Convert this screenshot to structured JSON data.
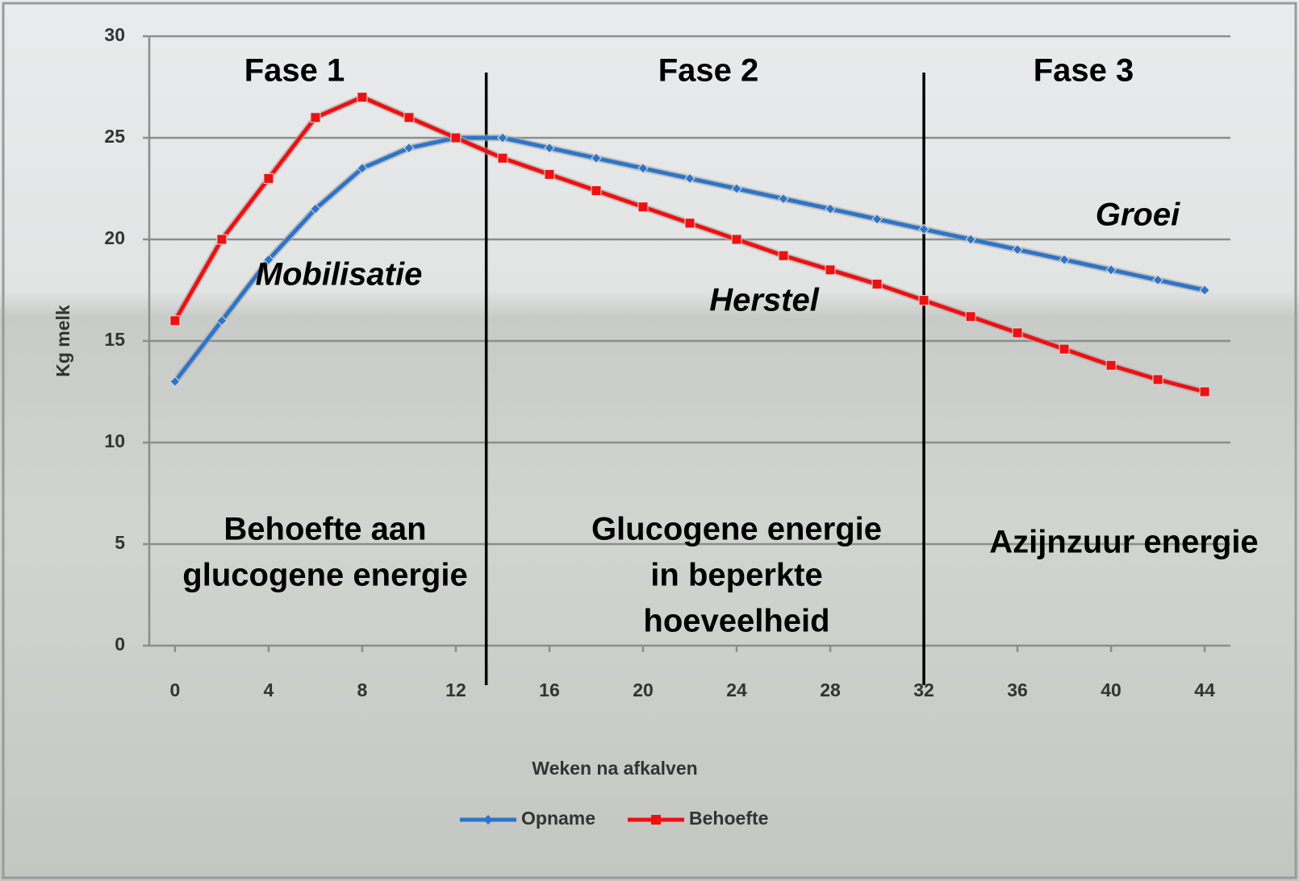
{
  "chart_data": {
    "type": "line",
    "xlabel": "Weken na afkalven",
    "ylabel": "Kg melk",
    "x": [
      0,
      2,
      4,
      6,
      8,
      10,
      12,
      14,
      16,
      18,
      20,
      22,
      24,
      26,
      28,
      30,
      32,
      34,
      36,
      38,
      40,
      42,
      44
    ],
    "series": [
      {
        "name": "Opname",
        "color": "#2e75c8",
        "marker": "diamond",
        "values": [
          13,
          16,
          19,
          21.5,
          23.5,
          24.5,
          25,
          25,
          24.5,
          24,
          23.5,
          23,
          22.5,
          22,
          21.5,
          21,
          20.5,
          20,
          19.5,
          19,
          18.5,
          18,
          17.5
        ]
      },
      {
        "name": "Behoefte",
        "color": "#ee1111",
        "marker": "square",
        "values": [
          16,
          20,
          23,
          26,
          27,
          26,
          25,
          24,
          23.2,
          22.4,
          21.6,
          20.8,
          20,
          19.2,
          18.5,
          17.8,
          17,
          16.2,
          15.4,
          14.6,
          13.8,
          13.1,
          12.5
        ]
      }
    ],
    "xlim": [
      -1.1,
      45.1
    ],
    "ylim": [
      0,
      30
    ],
    "xticks": [
      0,
      4,
      8,
      12,
      16,
      20,
      24,
      28,
      32,
      36,
      40,
      44
    ],
    "yticks": [
      0,
      5,
      10,
      15,
      20,
      25,
      30
    ],
    "grid": true,
    "legend": "bottom",
    "phase_boundaries": [
      13.3,
      32
    ],
    "annotations": [
      {
        "lines": [
          "Fase 1"
        ]
      },
      {
        "lines": [
          "Fase 2"
        ]
      },
      {
        "lines": [
          "Fase 3"
        ]
      },
      {
        "lines": [
          "Mobilisatie"
        ]
      },
      {
        "lines": [
          "Herstel"
        ]
      },
      {
        "lines": [
          "Groei"
        ]
      },
      {
        "lines": [
          "Behoefte aan",
          "glucogene energie"
        ]
      },
      {
        "lines": [
          "Glucogene energie",
          "in beperkte",
          "hoeveelheid"
        ]
      },
      {
        "lines": [
          "Azijnzuur energie"
        ]
      }
    ]
  }
}
